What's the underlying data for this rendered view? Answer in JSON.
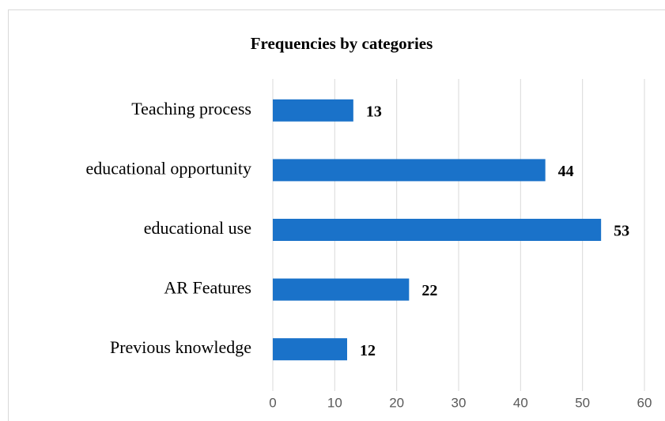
{
  "chart_data": {
    "type": "bar",
    "orientation": "horizontal",
    "title": "Frequencies by categories",
    "categories": [
      "Teaching process",
      "educational opportunity",
      "educational use",
      "AR Features",
      "Previous knowledge"
    ],
    "values": [
      13,
      44,
      53,
      22,
      12
    ],
    "color": "#1a72c9",
    "xlim": [
      0,
      60
    ],
    "xticks": [
      0,
      10,
      20,
      30,
      40,
      50,
      60
    ],
    "grid": true
  }
}
